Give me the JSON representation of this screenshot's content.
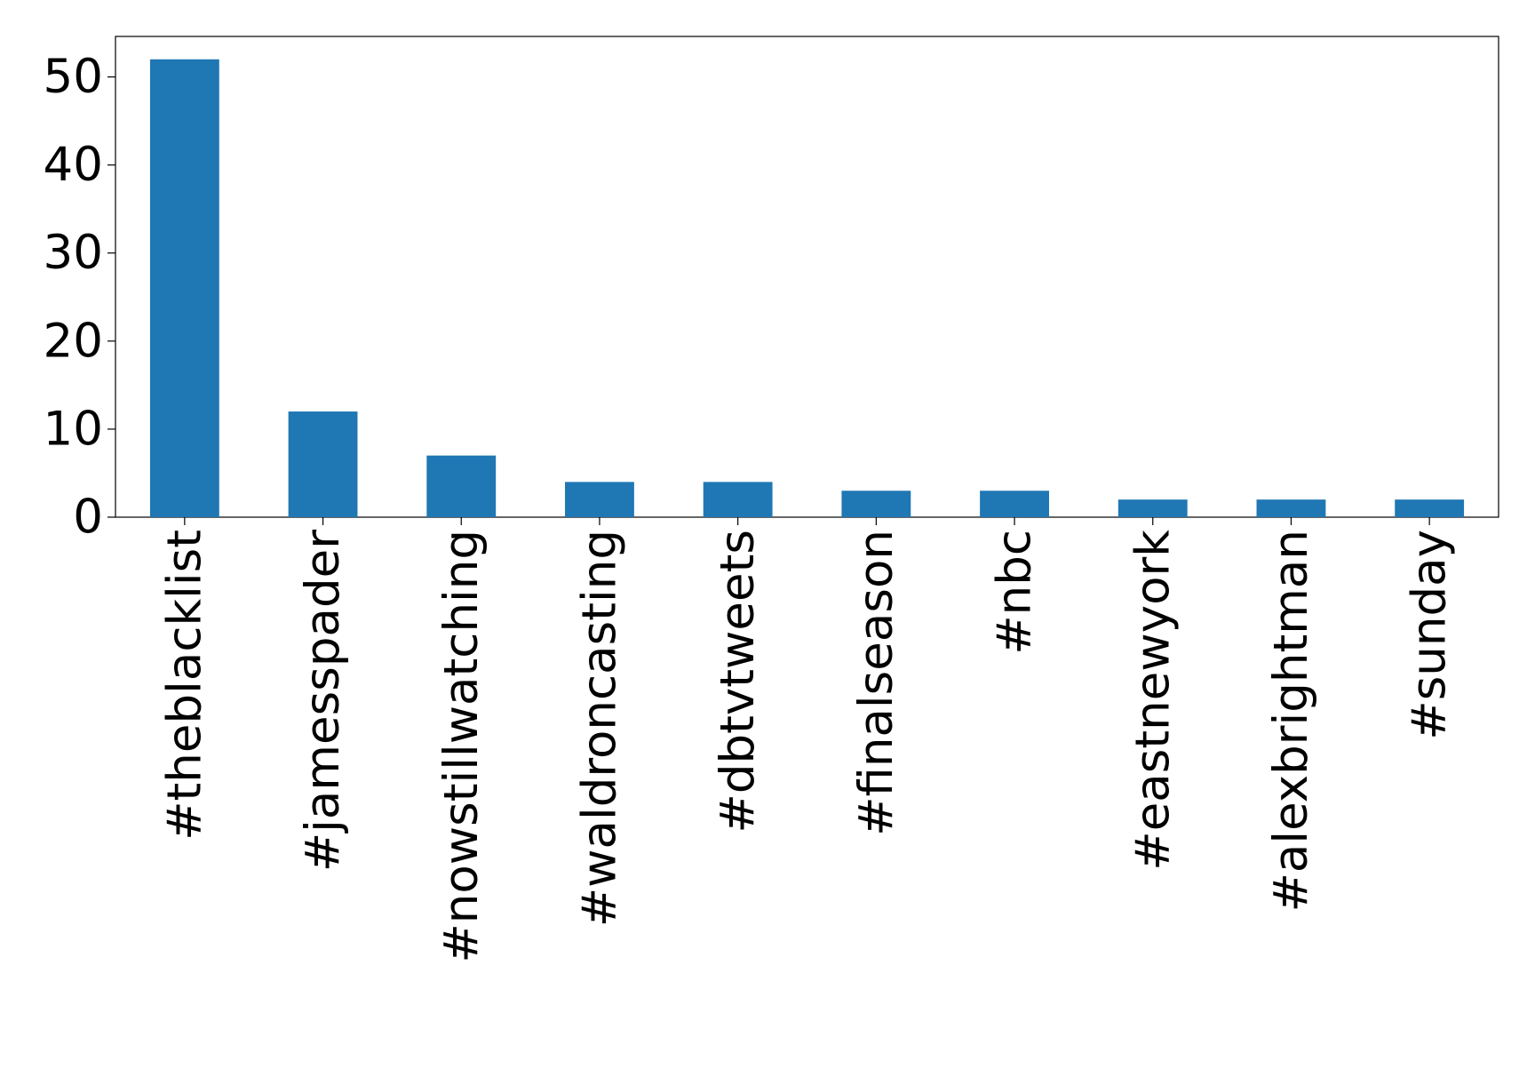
{
  "chart_data": {
    "type": "bar",
    "categories": [
      "#theblacklist",
      "#jamesspader",
      "#nowstillwatching",
      "#waldroncasting",
      "#dbtvtweets",
      "#finalseason",
      "#nbc",
      "#eastnewyork",
      "#alexbrightman",
      "#sunday"
    ],
    "values": [
      52,
      12,
      7,
      4,
      4,
      3,
      3,
      2,
      2,
      2
    ],
    "color": "#1f77b4",
    "ylim": [
      0,
      54.6
    ],
    "yticks": [
      0,
      10,
      20,
      30,
      40,
      50
    ],
    "grid": false
  }
}
